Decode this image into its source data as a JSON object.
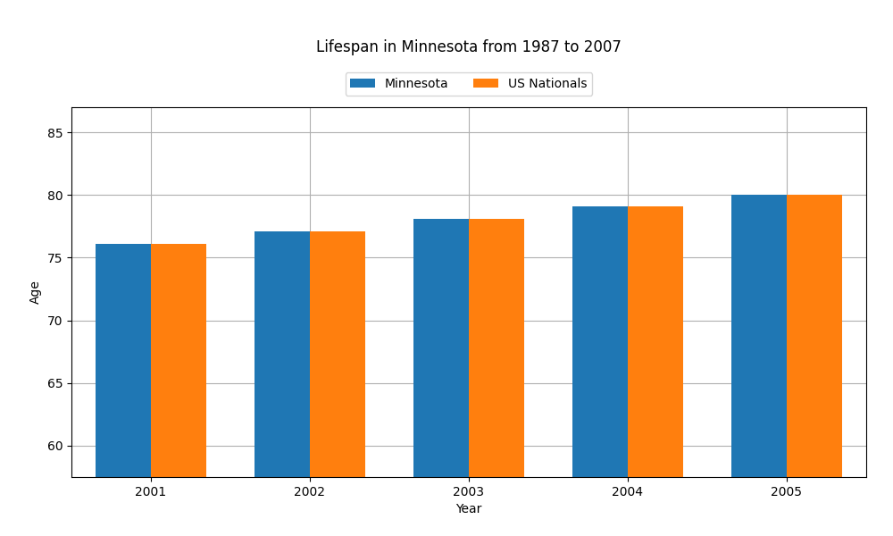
{
  "chart_data": {
    "type": "bar",
    "title": "Lifespan in Minnesota from 1987 to 2007",
    "x_label": "Year",
    "y_label": "Age",
    "categories": [
      "2001",
      "2002",
      "2003",
      "2004",
      "2005"
    ],
    "series": [
      {
        "name": "Minnesota",
        "values": [
          76.1,
          77.1,
          78.1,
          79.1,
          80.0
        ]
      },
      {
        "name": "US Nationals",
        "values": [
          76.1,
          77.1,
          78.1,
          79.1,
          80.0
        ]
      }
    ],
    "ylim": [
      57.5,
      87
    ],
    "yticks": [
      60,
      65,
      70,
      75,
      80,
      85
    ],
    "grid": true,
    "legend": "upper center"
  }
}
